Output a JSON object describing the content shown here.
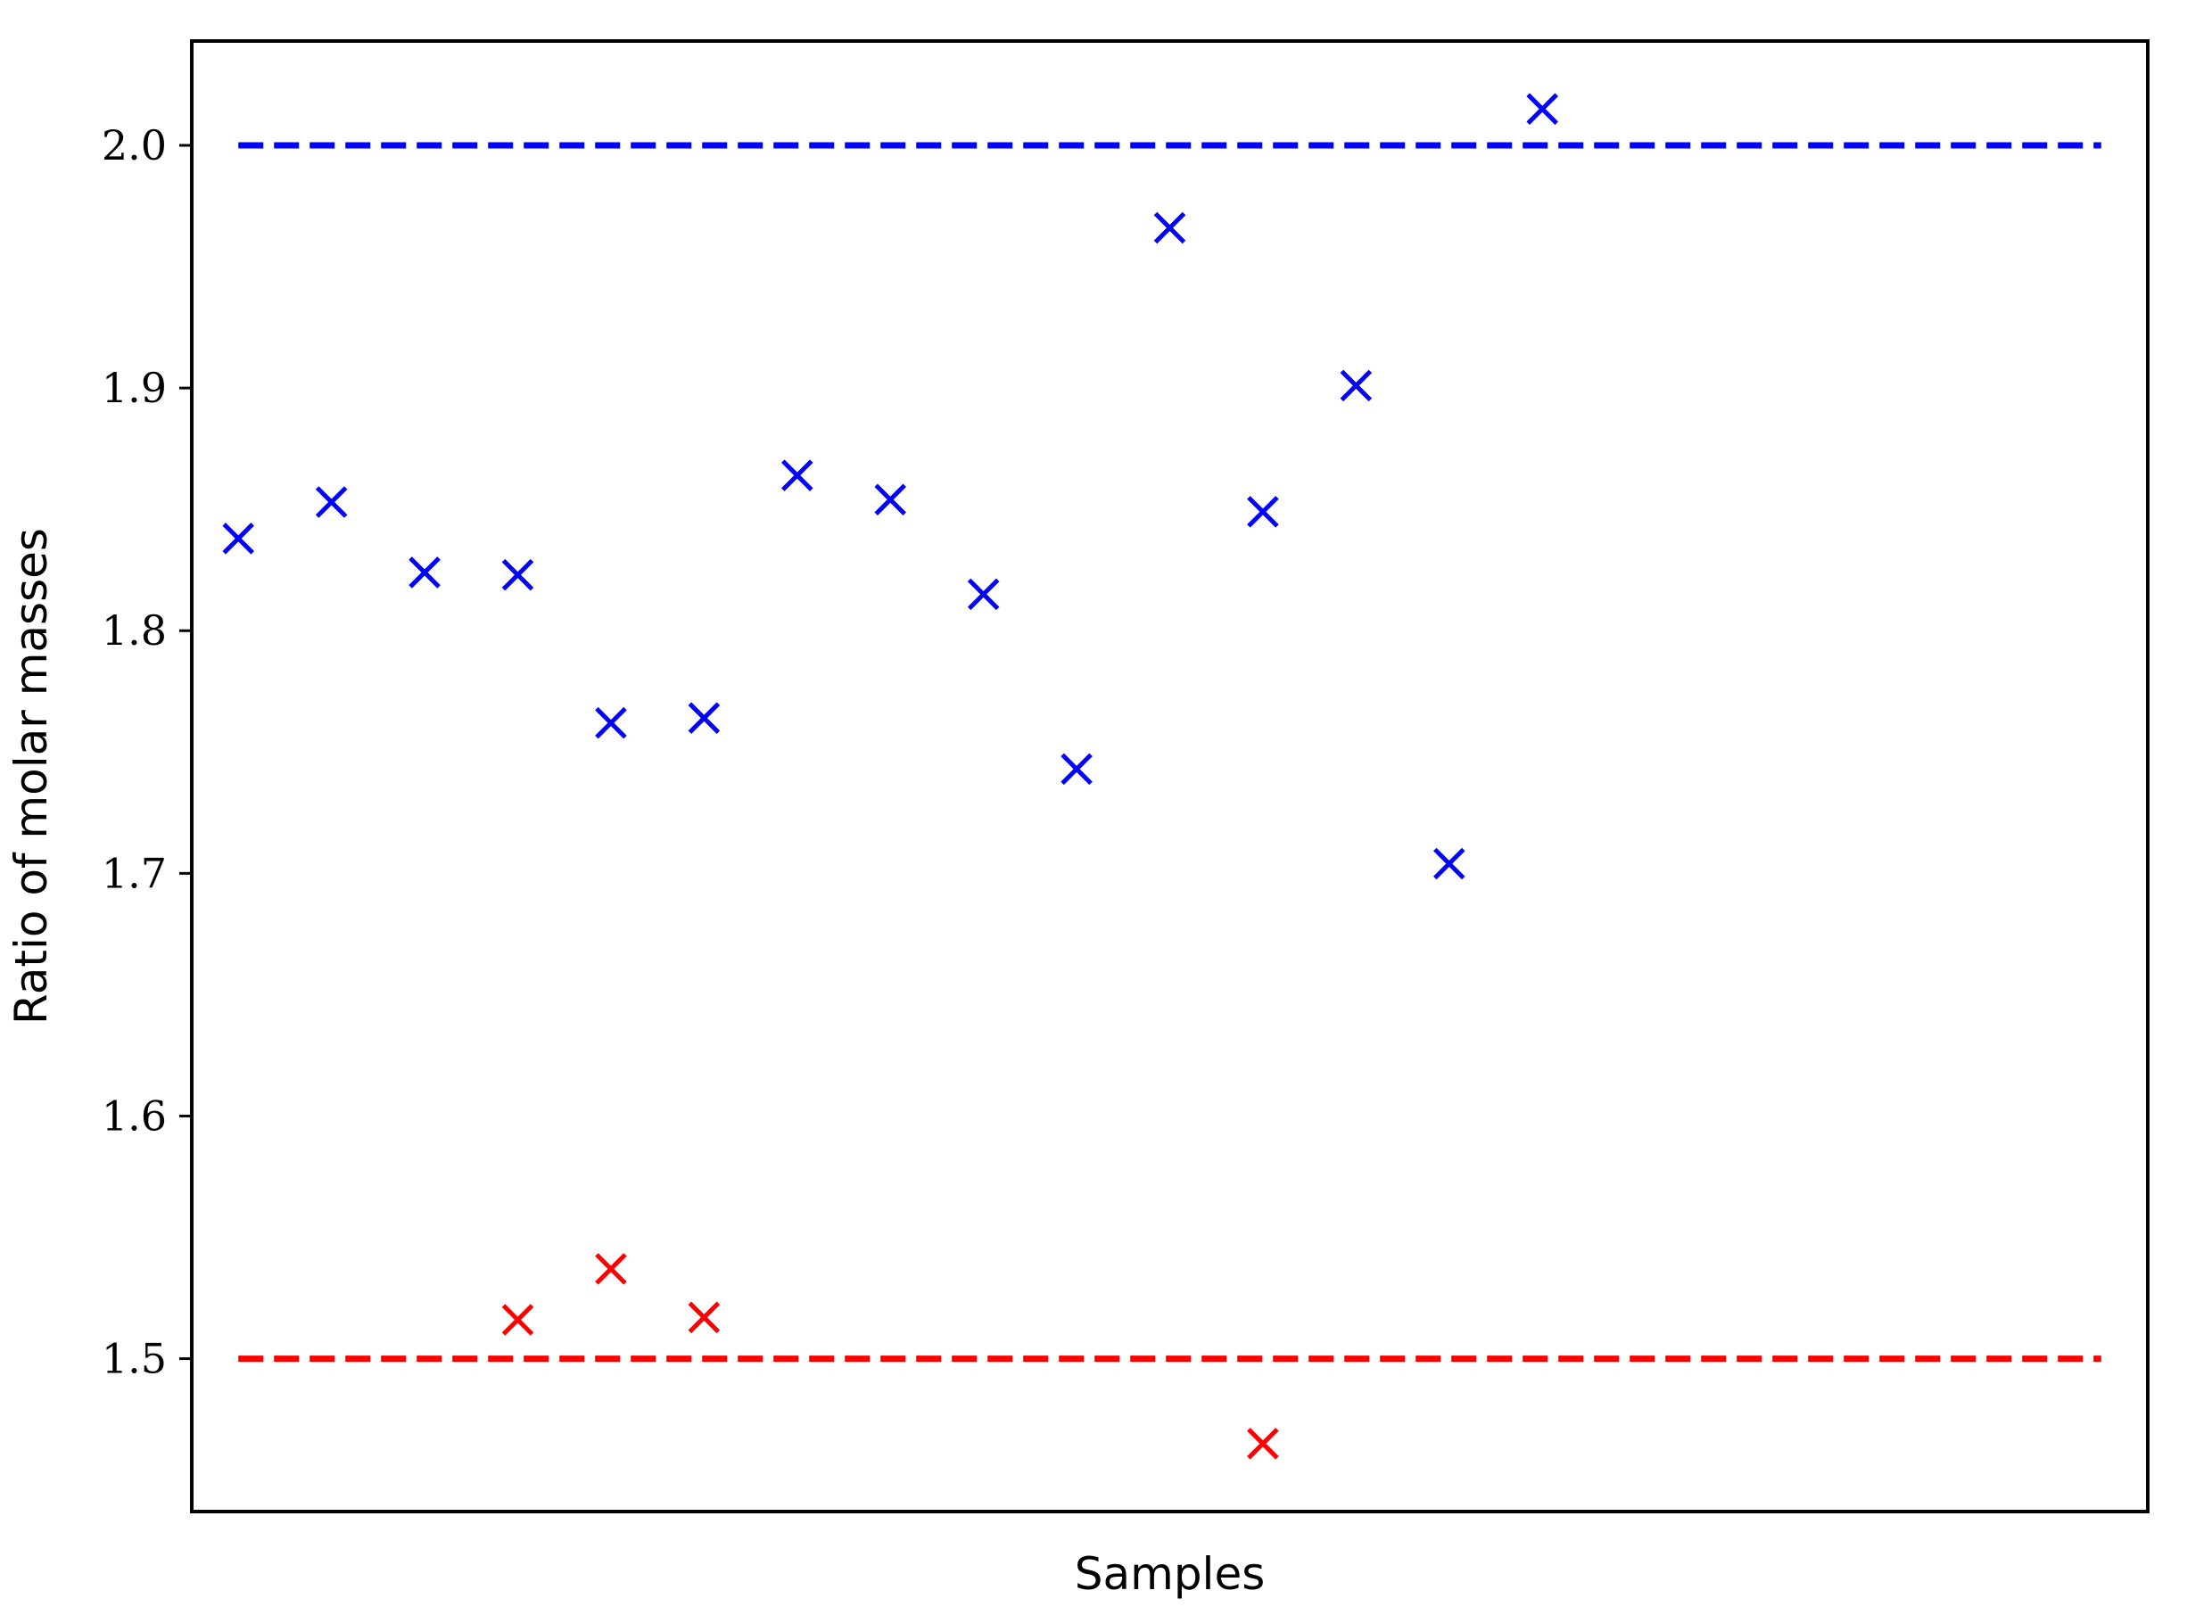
{
  "chart_data": {
    "type": "scatter",
    "title": "",
    "xlabel": "Samples",
    "ylabel": "Ratio of molar masses",
    "xlim": [
      -0.5,
      20.5
    ],
    "ylim": [
      1.437,
      2.043
    ],
    "yticks": [
      1.5,
      1.6,
      1.7,
      1.8,
      1.9,
      2.0
    ],
    "ytick_labels": [
      "1.5",
      "1.6",
      "1.7",
      "1.8",
      "1.9",
      "2.0"
    ],
    "grid": false,
    "legend": "none",
    "marker": "x",
    "series": [
      {
        "color": "#0000ff",
        "points": [
          {
            "x": 0,
            "y": 1.838
          },
          {
            "x": 1,
            "y": 1.853
          },
          {
            "x": 2,
            "y": 1.824
          },
          {
            "x": 3,
            "y": 1.823
          },
          {
            "x": 4,
            "y": 1.762
          },
          {
            "x": 5,
            "y": 1.764
          },
          {
            "x": 6,
            "y": 1.864
          },
          {
            "x": 7,
            "y": 1.854
          },
          {
            "x": 8,
            "y": 1.815
          },
          {
            "x": 9,
            "y": 1.743
          },
          {
            "x": 10,
            "y": 1.966
          },
          {
            "x": 11,
            "y": 1.849
          },
          {
            "x": 12,
            "y": 1.901
          },
          {
            "x": 13,
            "y": 1.704
          },
          {
            "x": 14,
            "y": 2.015
          }
        ]
      },
      {
        "color": "#ff0000",
        "points": [
          {
            "x": 3,
            "y": 1.516
          },
          {
            "x": 4,
            "y": 1.537
          },
          {
            "x": 5,
            "y": 1.517
          },
          {
            "x": 11,
            "y": 1.465
          }
        ]
      }
    ],
    "reference_lines": [
      {
        "y": 2.0,
        "x_range": [
          0,
          20
        ],
        "color": "#0000ff",
        "style": "dashed"
      },
      {
        "y": 1.5,
        "x_range": [
          0,
          20
        ],
        "color": "#ff0000",
        "style": "dashed"
      }
    ]
  }
}
